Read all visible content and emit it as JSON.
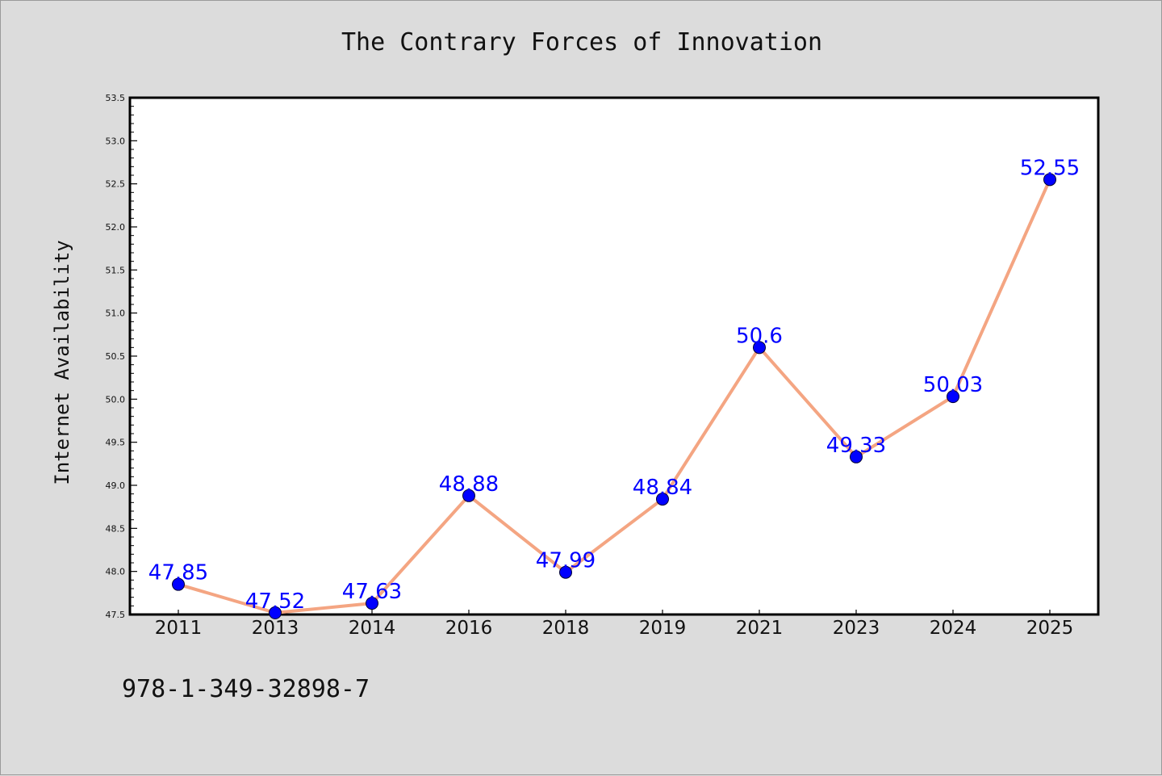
{
  "chart_data": {
    "type": "line",
    "title": "The Contrary Forces of Innovation",
    "xlabel": "",
    "ylabel": "Internet Availability",
    "categories": [
      "2011",
      "2013",
      "2014",
      "2016",
      "2018",
      "2019",
      "2021",
      "2023",
      "2024",
      "2025"
    ],
    "series": [
      {
        "values": [
          47.85,
          47.52,
          47.63,
          48.88,
          47.99,
          48.84,
          50.6,
          49.33,
          50.03,
          52.55
        ],
        "data_labels": [
          "47.85",
          "47.52",
          "47.63",
          "48.88",
          "47.99",
          "48.84",
          "50.6",
          "49.33",
          "50.03",
          "52.55"
        ],
        "line_color": "#f4a582",
        "marker_color": "#0000ff"
      }
    ],
    "ylim": [
      47.5,
      53.5
    ],
    "yticks": [
      "47.5",
      "48.0",
      "48.5",
      "49.0",
      "49.5",
      "50.0",
      "50.5",
      "51.0",
      "51.5",
      "52.0",
      "52.5",
      "53.0",
      "53.5"
    ],
    "grid": false,
    "legend": "none"
  },
  "footer": {
    "code": "978-1-349-32898-7"
  },
  "colors": {
    "background": "#dcdcdc",
    "plot_area": "#ffffff",
    "label": "#0000ff",
    "line": "#f4a582"
  }
}
